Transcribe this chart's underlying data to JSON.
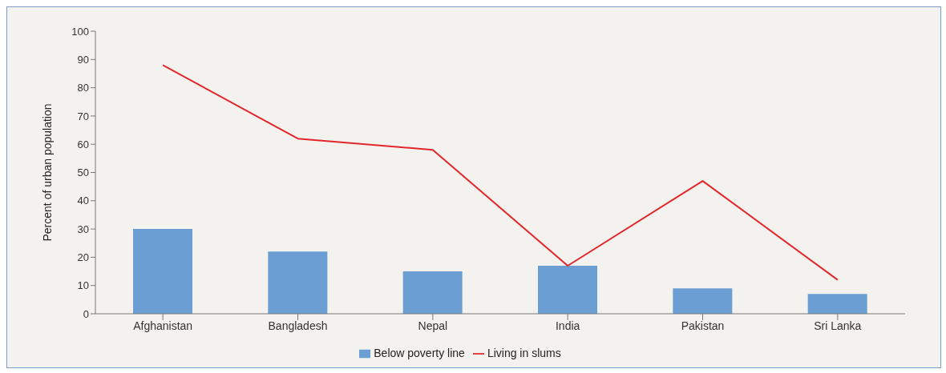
{
  "chart_data": {
    "type": "bar",
    "ylabel": "Percent of urban population",
    "categories": [
      "Afghanistan",
      "Bangladesh",
      "Nepal",
      "India",
      "Pakistan",
      "Sri Lanka"
    ],
    "series": [
      {
        "name": "Below poverty line",
        "color": "#6b9fd4",
        "values": [
          30,
          22,
          15,
          17,
          9,
          7
        ]
      },
      {
        "name": "Living in slums",
        "type": "line",
        "color": "#e3262b",
        "values": [
          88,
          62,
          58,
          17,
          47,
          12
        ]
      }
    ],
    "ylim": [
      0,
      100
    ],
    "yticks": [
      0,
      10,
      20,
      30,
      40,
      50,
      60,
      70,
      80,
      90,
      100
    ],
    "grid": false,
    "legend": "bottom",
    "marker": "none",
    "line_style": "solid"
  }
}
